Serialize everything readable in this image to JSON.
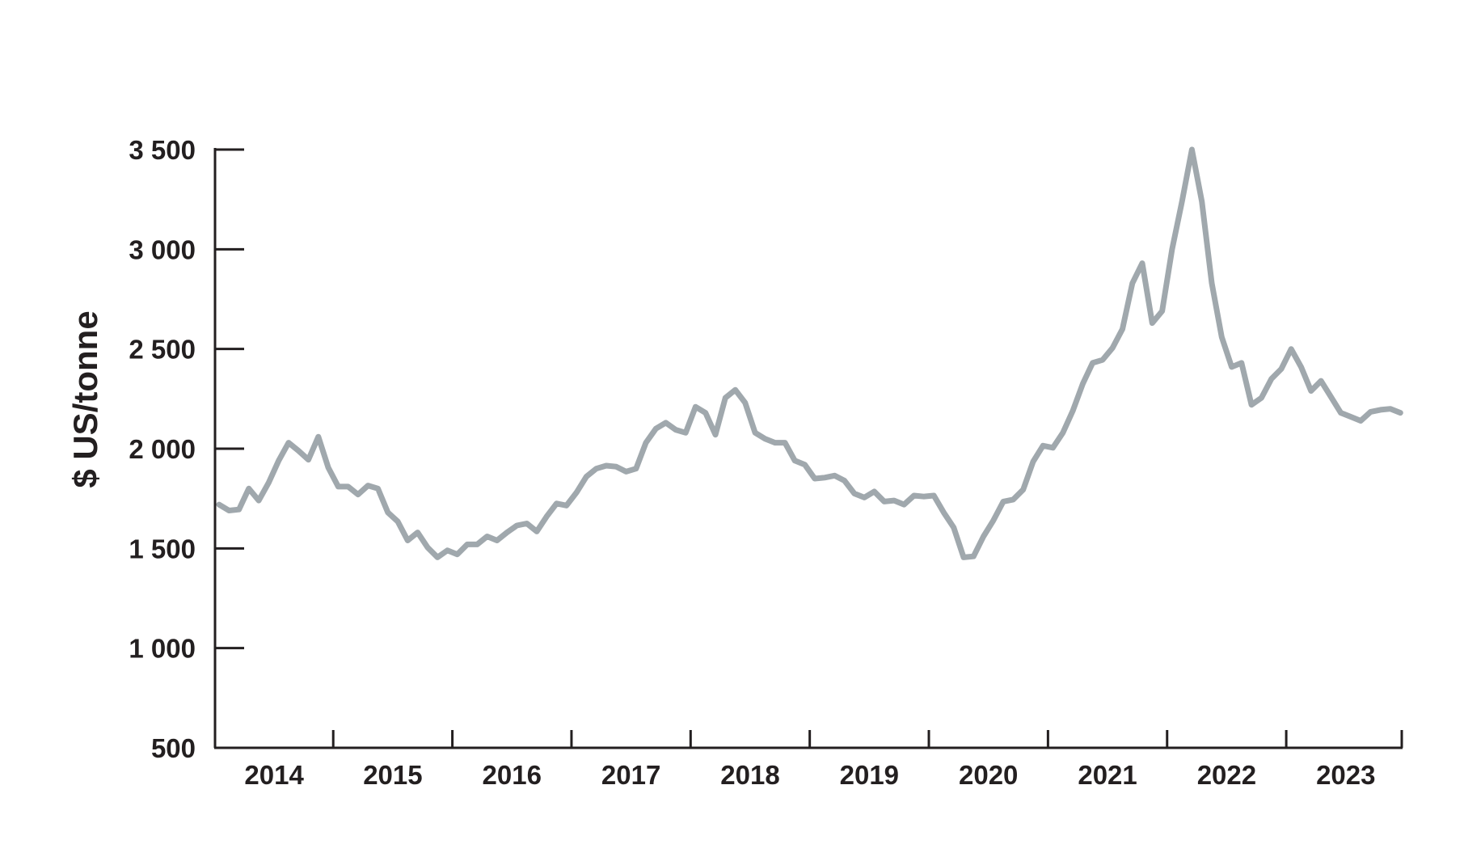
{
  "chart_data": {
    "type": "line",
    "title": "",
    "xlabel": "",
    "ylabel": "$ US/tonne",
    "ylim": [
      500,
      3500
    ],
    "yticks": [
      500,
      1000,
      1500,
      2000,
      2500,
      3000,
      3500
    ],
    "ytick_labels": [
      "500",
      "1 000",
      "1 500",
      "2 000",
      "2 500",
      "3 000",
      "3 500"
    ],
    "year_labels": [
      "2014",
      "2015",
      "2016",
      "2017",
      "2018",
      "2019",
      "2020",
      "2021",
      "2022",
      "2023"
    ],
    "grid": false,
    "legend": "none",
    "colors": {
      "line": "#a0a8ad",
      "axis": "#231f20"
    },
    "series": [
      {
        "x": [
          "2014-01",
          "2014-02",
          "2014-03",
          "2014-04",
          "2014-05",
          "2014-06",
          "2014-07",
          "2014-08",
          "2014-09",
          "2014-10",
          "2014-11",
          "2014-12",
          "2015-01",
          "2015-02",
          "2015-03",
          "2015-04",
          "2015-05",
          "2015-06",
          "2015-07",
          "2015-08",
          "2015-09",
          "2015-10",
          "2015-11",
          "2015-12",
          "2016-01",
          "2016-02",
          "2016-03",
          "2016-04",
          "2016-05",
          "2016-06",
          "2016-07",
          "2016-08",
          "2016-09",
          "2016-10",
          "2016-11",
          "2016-12",
          "2017-01",
          "2017-02",
          "2017-03",
          "2017-04",
          "2017-05",
          "2017-06",
          "2017-07",
          "2017-08",
          "2017-09",
          "2017-10",
          "2017-11",
          "2017-12",
          "2018-01",
          "2018-02",
          "2018-03",
          "2018-04",
          "2018-05",
          "2018-06",
          "2018-07",
          "2018-08",
          "2018-09",
          "2018-10",
          "2018-11",
          "2018-12",
          "2019-01",
          "2019-02",
          "2019-03",
          "2019-04",
          "2019-05",
          "2019-06",
          "2019-07",
          "2019-08",
          "2019-09",
          "2019-10",
          "2019-11",
          "2019-12",
          "2020-01",
          "2020-02",
          "2020-03",
          "2020-04",
          "2020-05",
          "2020-06",
          "2020-07",
          "2020-08",
          "2020-09",
          "2020-10",
          "2020-11",
          "2020-12",
          "2021-01",
          "2021-02",
          "2021-03",
          "2021-04",
          "2021-05",
          "2021-06",
          "2021-07",
          "2021-08",
          "2021-09",
          "2021-10",
          "2021-11",
          "2021-12",
          "2022-01",
          "2022-02",
          "2022-03",
          "2022-04",
          "2022-05",
          "2022-06",
          "2022-07",
          "2022-08",
          "2022-09",
          "2022-10",
          "2022-11",
          "2022-12",
          "2023-01",
          "2023-02",
          "2023-03",
          "2023-04",
          "2023-05",
          "2023-06",
          "2023-07",
          "2023-08",
          "2023-09",
          "2023-10",
          "2023-11",
          "2023-12"
        ],
        "values": [
          1720,
          1690,
          1695,
          1800,
          1740,
          1830,
          1940,
          2030,
          1990,
          1945,
          2060,
          1905,
          1810,
          1810,
          1770,
          1815,
          1800,
          1680,
          1635,
          1540,
          1580,
          1505,
          1455,
          1490,
          1470,
          1520,
          1520,
          1560,
          1540,
          1580,
          1615,
          1625,
          1585,
          1660,
          1725,
          1715,
          1780,
          1860,
          1900,
          1915,
          1910,
          1885,
          1900,
          2030,
          2100,
          2130,
          2095,
          2080,
          2210,
          2180,
          2070,
          2255,
          2295,
          2230,
          2080,
          2050,
          2030,
          2030,
          1940,
          1920,
          1850,
          1855,
          1865,
          1840,
          1775,
          1755,
          1785,
          1735,
          1740,
          1720,
          1765,
          1760,
          1765,
          1680,
          1605,
          1455,
          1460,
          1560,
          1640,
          1735,
          1745,
          1795,
          1935,
          2015,
          2005,
          2080,
          2190,
          2325,
          2430,
          2445,
          2505,
          2600,
          2830,
          2930,
          2630,
          2690,
          3000,
          3240,
          3500,
          3240,
          2830,
          2560,
          2410,
          2430,
          2220,
          2255,
          2350,
          2400,
          2500,
          2410,
          2290,
          2340,
          2260,
          2180,
          2160,
          2140,
          2185,
          2195,
          2200,
          2180
        ]
      }
    ]
  }
}
